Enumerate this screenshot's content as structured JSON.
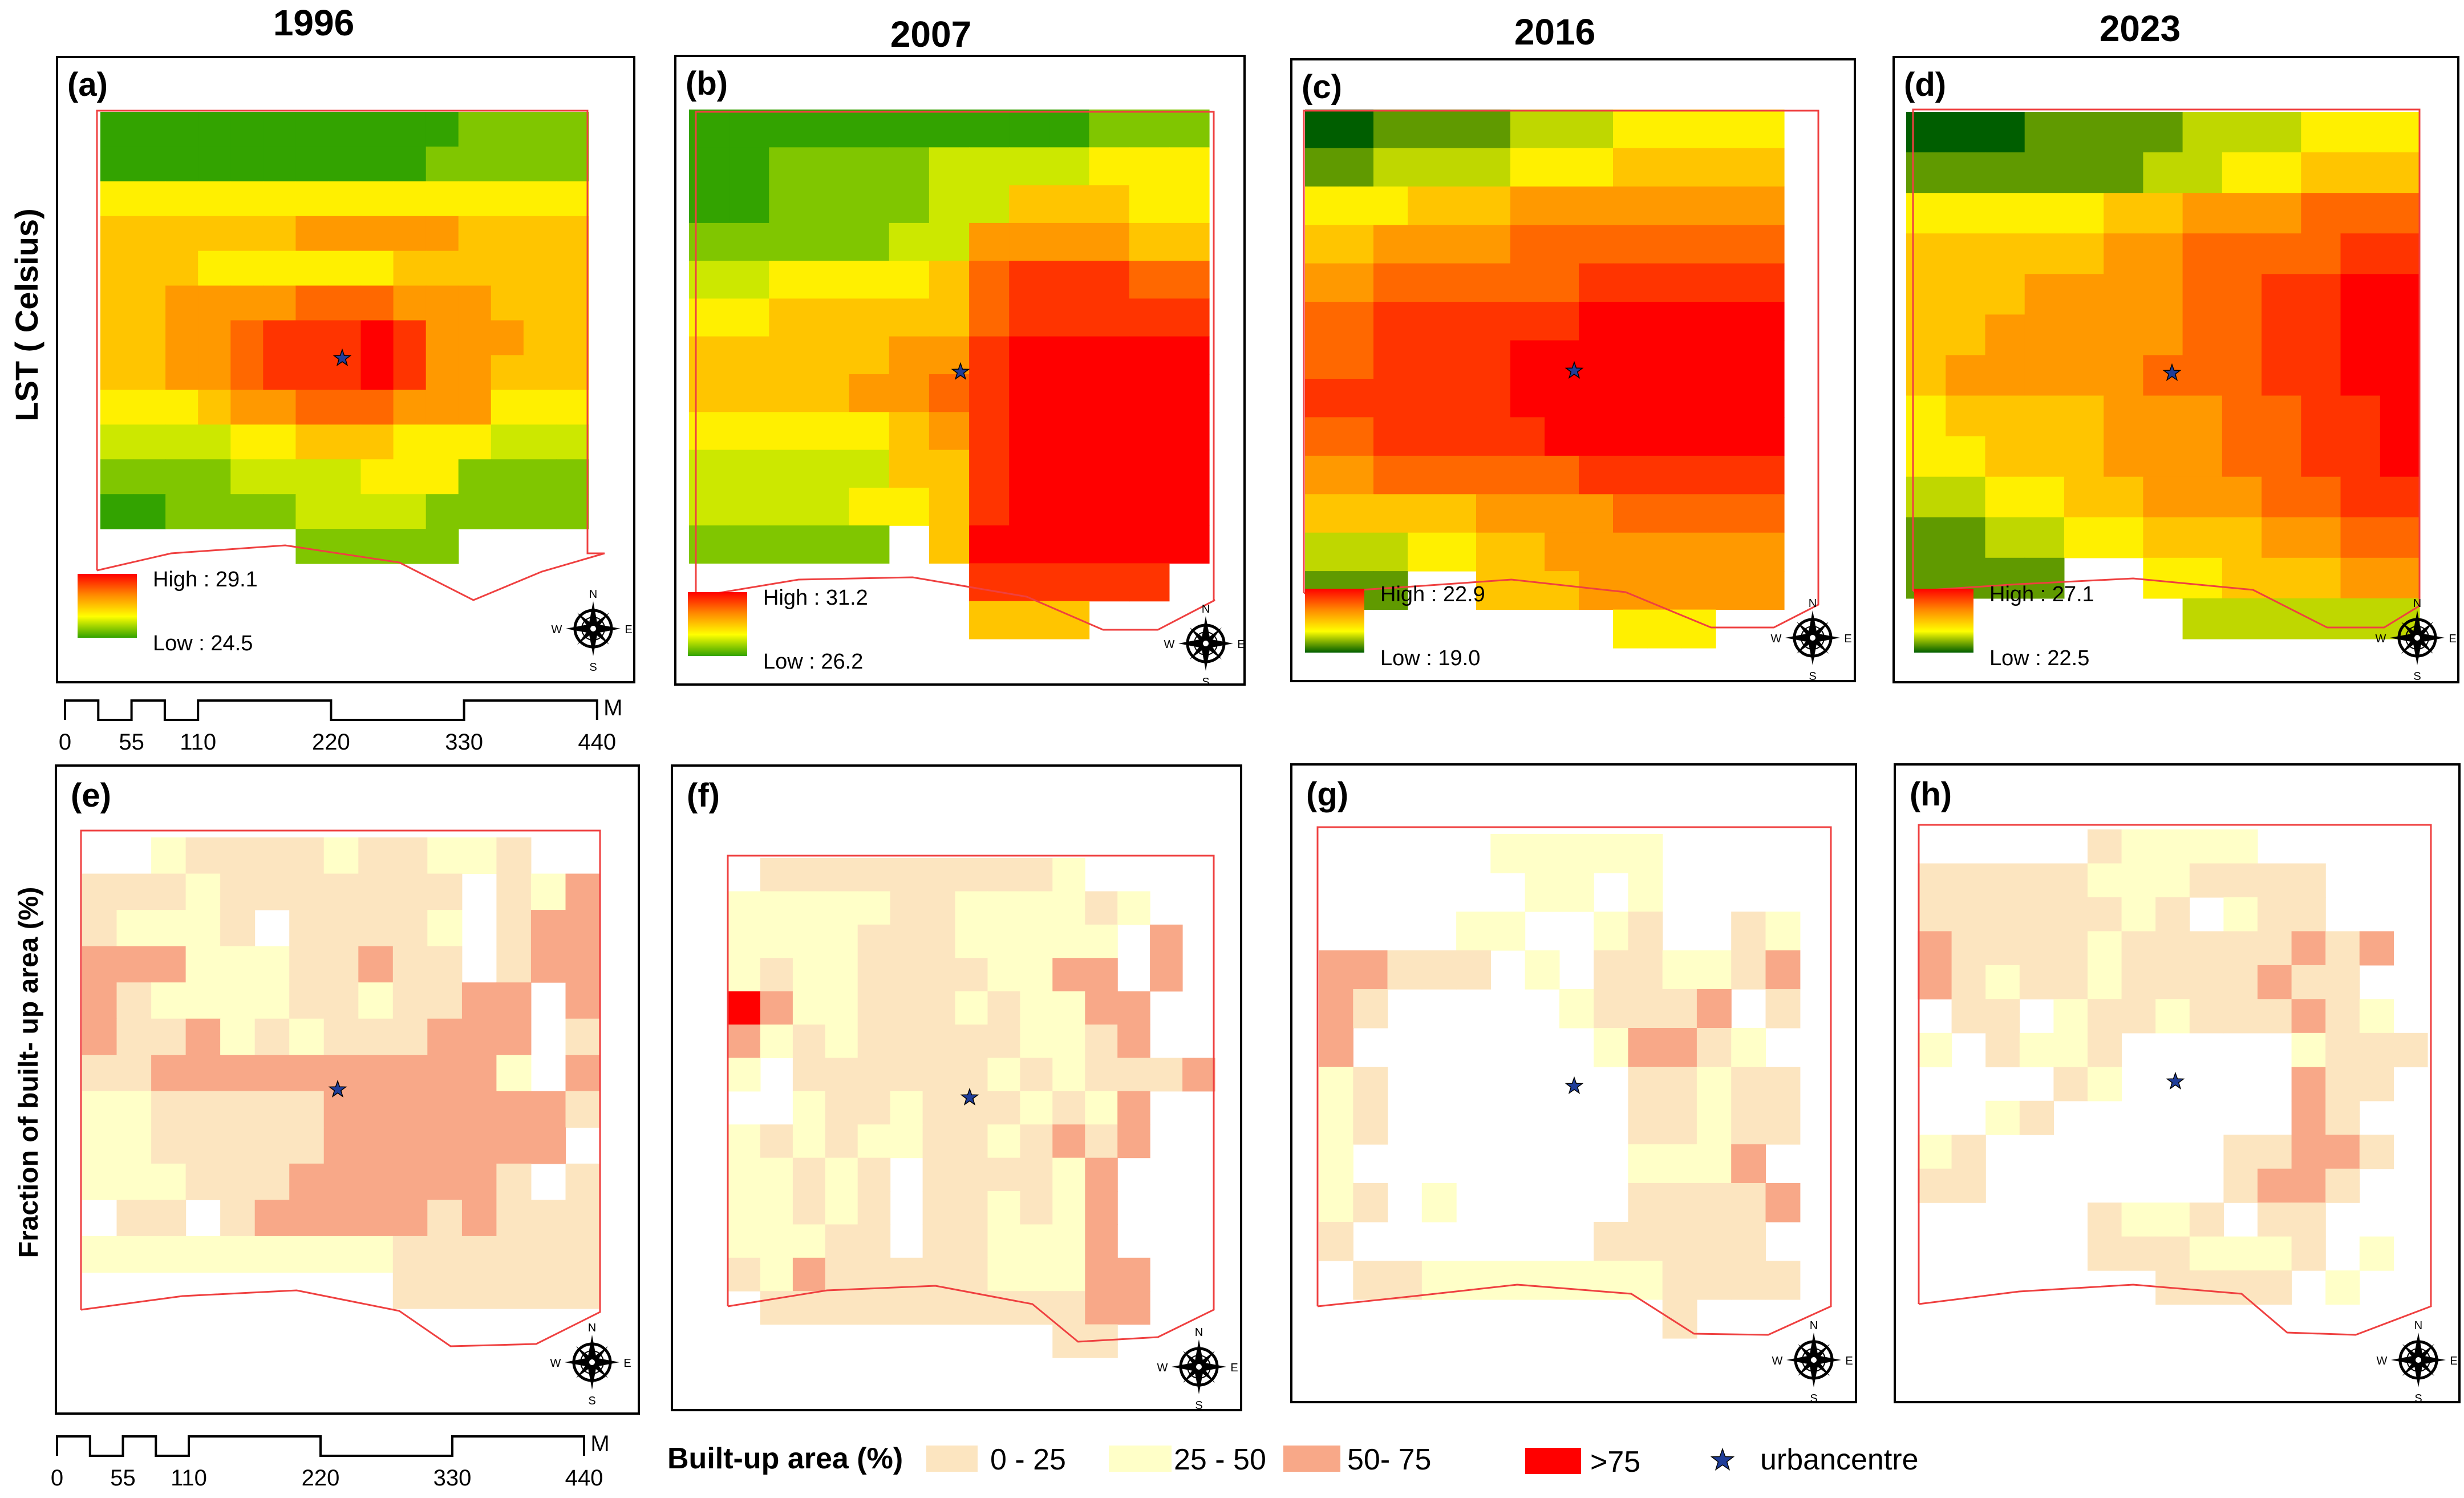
{
  "years": [
    "1996",
    "2007",
    "2016",
    "2023"
  ],
  "row_titles": {
    "lst": "LST ( Celsius)",
    "builtup": "Fraction of built- up area (%)"
  },
  "lst_panels": [
    {
      "tag": "(a)",
      "high": "High : 29.1",
      "low": "Low : 24.5"
    },
    {
      "tag": "(b)",
      "high": "High : 31.2",
      "low": "Low : 26.2"
    },
    {
      "tag": "(c)",
      "high": "High : 22.9",
      "low": "Low : 19.0"
    },
    {
      "tag": "(d)",
      "high": "High : 27.1",
      "low": "Low : 22.5"
    }
  ],
  "builtup_panels": [
    {
      "tag": "(e)"
    },
    {
      "tag": "(f)"
    },
    {
      "tag": "(g)"
    },
    {
      "tag": "(h)"
    }
  ],
  "scale_bar": {
    "ticks": [
      "0",
      "55",
      "110",
      "220",
      "330",
      "440"
    ],
    "unit": "M"
  },
  "compass": {
    "n": "N",
    "s": "S",
    "e": "E",
    "w": "W"
  },
  "legend": {
    "title": "Built-up area (%)",
    "classes": [
      {
        "label": "0 - 25",
        "color": "#fce5c0"
      },
      {
        "label": "25 - 50",
        "color": "#ffffc8"
      },
      {
        "label": "50- 75",
        "color": "#f8a888"
      },
      {
        "label": ">75",
        "color": "#ff0000"
      }
    ],
    "center_label": "urbancentre",
    "center_color": "#1f3d99"
  },
  "lst_ramp": [
    "#ff0000",
    "#ff8a00",
    "#ffff00",
    "#33a300"
  ],
  "lst_ramp_dark": [
    "#ff0000",
    "#ff8a00",
    "#ffff00",
    "#005e00"
  ],
  "boundary_color": "#ef4040",
  "lst_grids": [
    [
      "111111111112222",
      "111111111122222",
      "444444444444444",
      "555555666665555",
      "555444444555555",
      "556666777666555",
      "556678889866655",
      "556678889866555",
      "444566777666444",
      "333344555444333",
      "222233334442222",
      "112222333322222",
      "______22222____"
    ],
    [
      "1111111111222",
      "1122223333444",
      "1122223355544",
      "2222233666655",
      "3344445788877",
      "4455555788888",
      "5555566899999",
      "5555667899999",
      "4444456899999",
      "3333355899999",
      "3333445899999",
      "22222_5999999",
      "_______88888_",
      "_______555___"
    ],
    [
      "11222233344444",
      "22333344455555",
      "44455566666666",
      "55666677777777",
      "66777777888888",
      "77888888999999",
      "77888899999999",
      "88888899999999",
      "77888889999999",
      "66777777888888",
      "55555666677777",
      "33344556666666",
      "222__555666666",
      "_________444___"
    ],
    [
      "1112222333444",
      "2222223344555",
      "4444455666777",
      "5555566777788",
      "5556666778899",
      "5566666778899",
      "5666667778899",
      "4555566677889",
      "4455566677889",
      "3344556667788",
      "2233445556677",
      "2222__4455566",
      "_______333333"
    ]
  ],
  "builtup_grids": [
    [
      "__21111211221__",
      "11121111111_123",
      "12221_11112_133",
      "33322211311_133",
      "3122221121133_3",
      "3113212111333_1",
      "1133333333332_3",
      "221111133333331",
      "22111113333333_",
      "2221113333331_1",
      "_11_13333313111",
      "222222222111111",
      "_________111111"
    ],
    [
      "_1111111112__",
      "2222211222212",
      "222211122222_3",
      "212211112233_3",
      "4322111212233",
      "3212111112213",
      "2_1111112121113",
      "__21121112123",
      "2121221121313",
      "22121_111123_",
      "22121_112123",
      "22211_112223",
      "1231111122233",
      "_111111111133",
      "__________11_"
    ],
    [
      "_____22222____",
      "______22_2____",
      "____22__21__12",
      "33111_2_112213",
      "31_____21113_1",
      "3_______23312_",
      "21_______11211",
      "21_______11211",
      "2________2223",
      "21_2_____11113",
      "1_______11111",
      "_1122222221111",
      "__________1____"
    ],
    [
      "_____12222__",
      "111112221111",
      "11111121_211",
      "31111211111313",
      "3121121111311",
      "_11_2112111312",
      "2_1221_____2111",
      "____12_____311",
      "__21_______31_",
      "21_______11331",
      "11_______1331",
      "_____1221_11_",
      "_____1112221_2",
      "_______1111_2",
      "_____________"
    ]
  ]
}
